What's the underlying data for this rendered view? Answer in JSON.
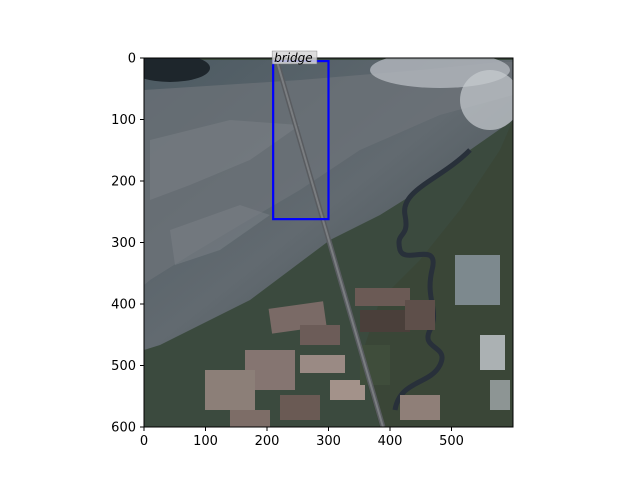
{
  "image": {
    "description_colors": {
      "riverbed": "#5b6166",
      "vegetation": "#3d4a3a",
      "fields_light": "#8a7a72",
      "fields_dark": "#4f4640",
      "bridge": "#6b6b6e",
      "water": "#2c3545"
    }
  },
  "axes": {
    "xticks": [
      "0",
      "100",
      "200",
      "300",
      "400",
      "500"
    ],
    "yticks": [
      "0",
      "100",
      "200",
      "300",
      "400",
      "500",
      "600"
    ],
    "xlim": [
      0,
      600
    ],
    "ylim": [
      0,
      600
    ],
    "yinverted": true
  },
  "annotations": [
    {
      "label": "bridge",
      "box": {
        "x1": 210,
        "y1": 5,
        "x2": 300,
        "y2": 262
      },
      "color": "#0000ff"
    }
  ]
}
